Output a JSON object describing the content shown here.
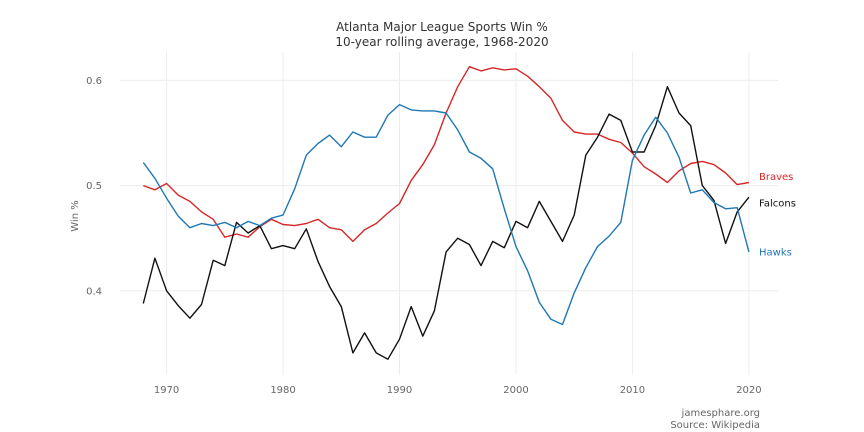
{
  "chart_data": {
    "type": "line",
    "title": "Atlanta Major League Sports Win %",
    "subtitle": "10-year rolling average, 1968-2020",
    "xlabel": "",
    "ylabel": "Win %",
    "xlim": [
      1966,
      2022.5
    ],
    "ylim": [
      0.32,
      0.627
    ],
    "xticks": [
      1970,
      1980,
      1990,
      2000,
      2010,
      2020
    ],
    "yticks": [
      0.4,
      0.5,
      0.6
    ],
    "ytick_labels": [
      "0.4",
      "0.5",
      "0.6"
    ],
    "grid": true,
    "legend": "direct labels at line ends",
    "x": [
      1968,
      1969,
      1970,
      1971,
      1972,
      1973,
      1974,
      1975,
      1976,
      1977,
      1978,
      1979,
      1980,
      1981,
      1982,
      1983,
      1984,
      1985,
      1986,
      1987,
      1988,
      1989,
      1990,
      1991,
      1992,
      1993,
      1994,
      1995,
      1996,
      1997,
      1998,
      1999,
      2000,
      2001,
      2002,
      2003,
      2004,
      2005,
      2006,
      2007,
      2008,
      2009,
      2010,
      2011,
      2012,
      2013,
      2014,
      2015,
      2016,
      2017,
      2018,
      2019,
      2020
    ],
    "series": [
      {
        "name": "Braves",
        "color": "#d62728",
        "values": [
          0.5,
          0.496,
          0.502,
          0.491,
          0.485,
          0.475,
          0.468,
          0.451,
          0.454,
          0.451,
          0.461,
          0.468,
          0.463,
          0.462,
          0.464,
          0.468,
          0.46,
          0.458,
          0.447,
          0.458,
          0.464,
          0.474,
          0.483,
          0.505,
          0.52,
          0.539,
          0.569,
          0.594,
          0.613,
          0.609,
          0.612,
          0.61,
          0.611,
          0.604,
          0.594,
          0.583,
          0.562,
          0.551,
          0.549,
          0.549,
          0.544,
          0.541,
          0.531,
          0.518,
          0.511,
          0.503,
          0.514,
          0.521,
          0.523,
          0.52,
          0.512,
          0.501,
          0.503
        ]
      },
      {
        "name": "Falcons",
        "color": "#111111",
        "values": [
          0.388,
          0.431,
          0.4,
          0.386,
          0.374,
          0.387,
          0.429,
          0.424,
          0.465,
          0.455,
          0.462,
          0.44,
          0.443,
          0.44,
          0.459,
          0.428,
          0.404,
          0.385,
          0.341,
          0.36,
          0.341,
          0.335,
          0.354,
          0.385,
          0.357,
          0.381,
          0.437,
          0.45,
          0.444,
          0.424,
          0.447,
          0.441,
          0.466,
          0.46,
          0.485,
          0.466,
          0.447,
          0.472,
          0.529,
          0.546,
          0.568,
          0.562,
          0.532,
          0.532,
          0.557,
          0.594,
          0.569,
          0.557,
          0.5,
          0.486,
          0.445,
          0.475,
          0.489
        ]
      },
      {
        "name": "Hawks",
        "color": "#1f77b4",
        "values": [
          0.522,
          0.507,
          0.488,
          0.471,
          0.46,
          0.464,
          0.462,
          0.465,
          0.46,
          0.466,
          0.462,
          0.469,
          0.472,
          0.497,
          0.529,
          0.54,
          0.548,
          0.537,
          0.551,
          0.546,
          0.546,
          0.567,
          0.577,
          0.572,
          0.571,
          0.571,
          0.569,
          0.553,
          0.532,
          0.526,
          0.516,
          0.478,
          0.442,
          0.419,
          0.389,
          0.373,
          0.368,
          0.398,
          0.422,
          0.442,
          0.452,
          0.465,
          0.524,
          0.548,
          0.565,
          0.55,
          0.527,
          0.493,
          0.496,
          0.484,
          0.478,
          0.479,
          0.437
        ]
      }
    ]
  },
  "credits": {
    "site": "jamesphare.org",
    "source": "Source: Wikipedia"
  }
}
